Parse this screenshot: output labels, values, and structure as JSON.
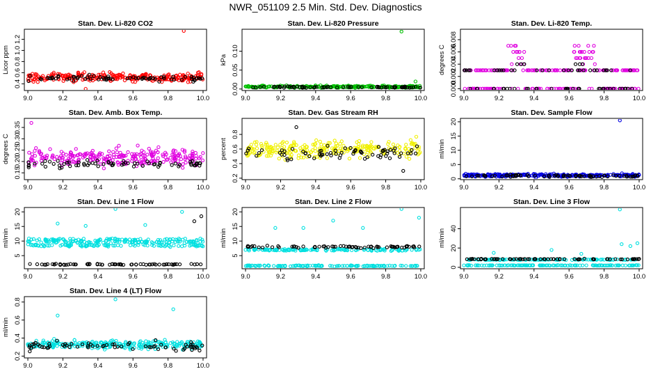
{
  "title": "NWR_051109  2.5 Min. Std. Dev. Diagnostics",
  "chart_data": [
    {
      "type": "scatter",
      "title": "Stan. Dev. Li-820 CO2",
      "ylabel": "Licor ppm",
      "xlim": [
        8.98,
        10.02
      ],
      "ylim": [
        0.28,
        1.38
      ],
      "xticks": [
        "9.0",
        "9.2",
        "9.4",
        "9.6",
        "9.8",
        "10.0"
      ],
      "yticks": [
        "0.4",
        "0.6",
        "0.8",
        "1.0",
        "1.2"
      ],
      "series": [
        {
          "name": "main",
          "color": "#ff0000",
          "base": 0.52,
          "spread": 0.08,
          "lo": 0.35,
          "hi": 0.72
        },
        {
          "name": "ref",
          "color": "#000000",
          "base": 0.5,
          "spread": 0.05,
          "lo": 0.4,
          "hi": 0.62
        }
      ],
      "outliers": [
        {
          "x": 9.89,
          "y": 1.35,
          "color": "#ff0000"
        },
        {
          "x": 9.33,
          "y": 0.31,
          "color": "#ff0000"
        }
      ]
    },
    {
      "type": "scatter",
      "title": "Stan. Dev. Li-820 Pressure",
      "ylabel": "kPa",
      "xlim": [
        8.98,
        10.02
      ],
      "ylim": [
        -0.004,
        0.158
      ],
      "xticks": [
        "9.0",
        "9.2",
        "9.4",
        "9.6",
        "9.8",
        "10.0"
      ],
      "yticks": [
        "0.00",
        "0.05",
        "0.10"
      ],
      "series": [
        {
          "name": "main",
          "color": "#00c000",
          "base": 0.006,
          "spread": 0.003,
          "lo": 0.0,
          "hi": 0.016
        },
        {
          "name": "ref",
          "color": "#000000",
          "base": 0.005,
          "spread": 0.002,
          "lo": 0.0,
          "hi": 0.012
        }
      ],
      "outliers": [
        {
          "x": 9.89,
          "y": 0.152,
          "color": "#00c000"
        },
        {
          "x": 9.97,
          "y": 0.02,
          "color": "#00c000"
        }
      ]
    },
    {
      "type": "scatter",
      "title": "Stan. Dev. Li-820 Temp.",
      "ylabel": "degrees C",
      "xlim": [
        8.98,
        10.02
      ],
      "ylim": [
        -0.0003,
        0.0097
      ],
      "xticks": [
        "9.0",
        "9.2",
        "9.4",
        "9.6",
        "9.8",
        "10.0"
      ],
      "yticks": [
        "0.000",
        "0.002",
        "0.004",
        "0.006",
        "0.008"
      ],
      "series": [
        {
          "name": "main",
          "color": "#e000e0",
          "levels": [
            0,
            0.003,
            0.004,
            0.005,
            0.006,
            0.007
          ]
        },
        {
          "name": "ref",
          "color": "#000000",
          "levels": [
            0,
            0.003,
            0.004
          ]
        }
      ],
      "outliers": []
    },
    {
      "type": "scatter",
      "title": "Stan. Dev. Amb. Box Temp.",
      "ylabel": "degrees C",
      "xlim": [
        8.98,
        10.02
      ],
      "ylim": [
        0.12,
        0.39
      ],
      "xticks": [
        "9.0",
        "9.2",
        "9.4",
        "9.6",
        "9.8",
        "10.0"
      ],
      "yticks": [
        "0.15",
        "0.20",
        "0.25",
        "0.30",
        "0.35"
      ],
      "series": [
        {
          "name": "main",
          "color": "#e000e0",
          "base": 0.22,
          "spread": 0.04,
          "lo": 0.13,
          "hi": 0.31
        },
        {
          "name": "ref",
          "color": "#000000",
          "base": 0.19,
          "spread": 0.02,
          "lo": 0.14,
          "hi": 0.24
        }
      ],
      "outliers": [
        {
          "x": 9.02,
          "y": 0.37,
          "color": "#e000e0"
        }
      ]
    },
    {
      "type": "scatter",
      "title": "Stan. Dev. Gas Stream RH",
      "ylabel": "percent",
      "xlim": [
        8.98,
        10.02
      ],
      "ylim": [
        0.18,
        1.02
      ],
      "xticks": [
        "9.0",
        "9.2",
        "9.4",
        "9.6",
        "9.8",
        "10.0"
      ],
      "yticks": [
        "0.2",
        "0.4",
        "0.6",
        "0.8"
      ],
      "series": [
        {
          "name": "main",
          "color": "#f0f000",
          "base": 0.6,
          "spread": 0.12,
          "lo": 0.3,
          "hi": 0.95
        },
        {
          "name": "ref",
          "color": "#000000",
          "base": 0.55,
          "spread": 0.1,
          "lo": 0.28,
          "hi": 0.92
        }
      ],
      "outliers": [
        {
          "x": 9.29,
          "y": 0.9,
          "color": "#000000"
        },
        {
          "x": 9.9,
          "y": 0.3,
          "color": "#000000"
        }
      ]
    },
    {
      "type": "scatter",
      "title": "Stan. Dev. Sample Flow",
      "ylabel": "ml/min",
      "xlim": [
        8.98,
        10.02
      ],
      "ylim": [
        -0.3,
        21.2
      ],
      "xticks": [
        "9.0",
        "9.2",
        "9.4",
        "9.6",
        "9.8",
        "10.0"
      ],
      "yticks": [
        "0",
        "5",
        "10",
        "15",
        "20"
      ],
      "series": [
        {
          "name": "main",
          "color": "#0000e0",
          "base": 1.2,
          "spread": 0.5,
          "lo": 0.3,
          "hi": 3.5
        },
        {
          "name": "ref",
          "color": "#000000",
          "base": 1.0,
          "spread": 0.4,
          "lo": 0.3,
          "hi": 2.2
        }
      ],
      "outliers": [
        {
          "x": 9.89,
          "y": 20.5,
          "color": "#0000e0"
        }
      ]
    },
    {
      "type": "scatter",
      "title": "Stan. Dev. Line 1 Flow",
      "ylabel": "ml/min",
      "xlim": [
        8.98,
        10.02
      ],
      "ylim": [
        0.5,
        21.5
      ],
      "xticks": [
        "9.0",
        "9.2",
        "9.4",
        "9.6",
        "9.8",
        "10.0"
      ],
      "yticks": [
        "5",
        "10",
        "15",
        "20"
      ],
      "series": [
        {
          "name": "main",
          "color": "#00e0e0",
          "band": [
            8.5,
            9.7,
            10.5
          ]
        },
        {
          "name": "ref",
          "color": "#000000",
          "band": [
            2.0
          ]
        }
      ],
      "outliers": [
        {
          "x": 9.5,
          "y": 21.0,
          "color": "#00e0e0"
        },
        {
          "x": 9.17,
          "y": 16.0,
          "color": "#00e0e0"
        },
        {
          "x": 9.33,
          "y": 15.2,
          "color": "#00e0e0"
        },
        {
          "x": 9.67,
          "y": 15.5,
          "color": "#00e0e0"
        },
        {
          "x": 9.88,
          "y": 20.0,
          "color": "#00e0e0"
        },
        {
          "x": 9.99,
          "y": 18.5,
          "color": "#000000"
        },
        {
          "x": 9.95,
          "y": 16.8,
          "color": "#000000"
        }
      ]
    },
    {
      "type": "scatter",
      "title": "Stan. Dev. Line 2 Flow",
      "ylabel": "ml/min",
      "xlim": [
        8.98,
        10.02
      ],
      "ylim": [
        0.5,
        21.5
      ],
      "xticks": [
        "9.0",
        "9.2",
        "9.4",
        "9.6",
        "9.8",
        "10.0"
      ],
      "yticks": [
        "5",
        "10",
        "15",
        "20"
      ],
      "series": [
        {
          "name": "main",
          "color": "#00e0e0",
          "band": [
            1.5,
            7.0
          ]
        },
        {
          "name": "ref",
          "color": "#000000",
          "band": [
            8.0
          ]
        }
      ],
      "outliers": [
        {
          "x": 9.89,
          "y": 21.0,
          "color": "#00e0e0"
        },
        {
          "x": 9.17,
          "y": 14.5,
          "color": "#00e0e0"
        },
        {
          "x": 9.33,
          "y": 14.5,
          "color": "#00e0e0"
        },
        {
          "x": 9.67,
          "y": 14.5,
          "color": "#00e0e0"
        },
        {
          "x": 9.5,
          "y": 17.0,
          "color": "#00e0e0"
        },
        {
          "x": 9.99,
          "y": 18.0,
          "color": "#00e0e0"
        }
      ]
    },
    {
      "type": "scatter",
      "title": "Stan. Dev. Line 3 Flow",
      "ylabel": "ml/min",
      "xlim": [
        8.98,
        10.02
      ],
      "ylim": [
        -1.5,
        62
      ],
      "xticks": [
        "9.0",
        "9.2",
        "9.4",
        "9.6",
        "9.8",
        "10.0"
      ],
      "yticks": [
        "0",
        "20",
        "40"
      ],
      "series": [
        {
          "name": "main",
          "color": "#00e0e0",
          "band": [
            2.0,
            8.0
          ]
        },
        {
          "name": "ref",
          "color": "#000000",
          "band": [
            8.5
          ]
        }
      ],
      "outliers": [
        {
          "x": 9.89,
          "y": 60.0,
          "color": "#00e0e0"
        },
        {
          "x": 9.17,
          "y": 15.0,
          "color": "#00e0e0"
        },
        {
          "x": 9.5,
          "y": 18.0,
          "color": "#00e0e0"
        },
        {
          "x": 9.67,
          "y": 14.0,
          "color": "#00e0e0"
        },
        {
          "x": 9.9,
          "y": 24.0,
          "color": "#00e0e0"
        },
        {
          "x": 9.95,
          "y": 22.0,
          "color": "#00e0e0"
        },
        {
          "x": 9.99,
          "y": 25.0,
          "color": "#00e0e0"
        }
      ]
    },
    {
      "type": "scatter",
      "title": "Stan. Dev. Line 4 (LT) Flow",
      "ylabel": "ml/min",
      "xlim": [
        8.98,
        10.02
      ],
      "ylim": [
        0.18,
        0.86
      ],
      "xticks": [
        "9.0",
        "9.2",
        "9.4",
        "9.6",
        "9.8",
        "10.0"
      ],
      "yticks": [
        "0.2",
        "0.4",
        "0.6",
        "0.8"
      ],
      "series": [
        {
          "name": "main",
          "color": "#00e0e0",
          "base": 0.33,
          "spread": 0.05,
          "lo": 0.22,
          "hi": 0.47
        },
        {
          "name": "ref",
          "color": "#000000",
          "base": 0.31,
          "spread": 0.05,
          "lo": 0.22,
          "hi": 0.42
        }
      ],
      "outliers": [
        {
          "x": 9.5,
          "y": 0.83,
          "color": "#00e0e0"
        },
        {
          "x": 9.17,
          "y": 0.65,
          "color": "#00e0e0"
        },
        {
          "x": 9.83,
          "y": 0.72,
          "color": "#00e0e0"
        }
      ]
    }
  ]
}
